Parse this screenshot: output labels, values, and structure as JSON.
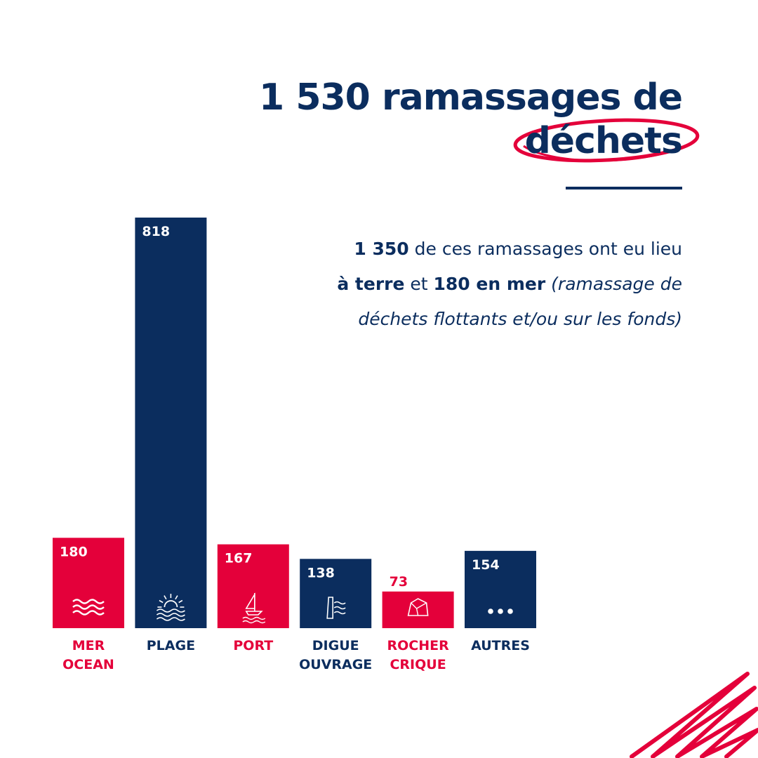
{
  "header": {
    "title_line1": "1 530 ramassages de",
    "title_line2": "déchets"
  },
  "description": {
    "num1": "1 350",
    "text1": " de ces ramassages ont eu lieu",
    "bold_terre": "à terre",
    "text2": " et ",
    "bold_mer": "180 en mer",
    "text3": " ",
    "italic": "(ramassage de déchets flottants et/ou sur les fonds)"
  },
  "colors": {
    "navy": "#0b2d5e",
    "red": "#e4003a"
  },
  "chart_data": {
    "type": "bar",
    "categories": [
      [
        "MER",
        "OCEAN"
      ],
      [
        "PLAGE"
      ],
      [
        "PORT"
      ],
      [
        "DIGUE",
        "OUVRAGE"
      ],
      [
        "ROCHER",
        "CRIQUE"
      ],
      [
        "AUTRES"
      ]
    ],
    "values": [
      180,
      818,
      167,
      138,
      73,
      154
    ],
    "bar_colors": [
      "red",
      "navy",
      "red",
      "navy",
      "red",
      "navy"
    ],
    "icons": [
      "waves-icon",
      "sunset-icon",
      "sailboat-icon",
      "seawall-icon",
      "rock-icon",
      "dots-icon"
    ],
    "ylim": [
      0,
      818
    ],
    "grid": false,
    "legend": "none"
  }
}
